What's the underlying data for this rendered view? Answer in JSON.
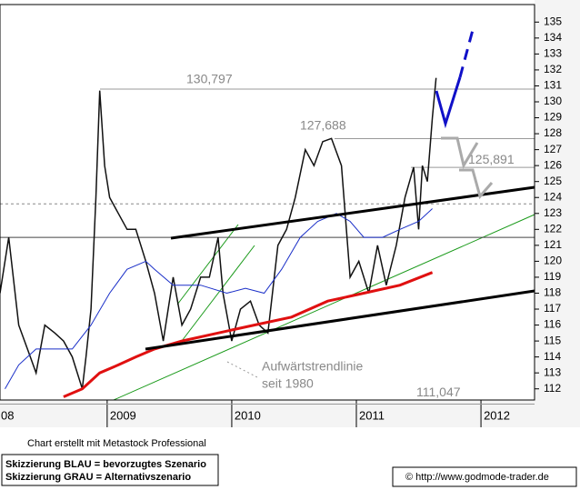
{
  "chart_data": {
    "type": "line",
    "xlim": [
      2008.14,
      2012.43
    ],
    "xticks": [
      {
        "value": 2008,
        "label": "08"
      },
      2009,
      2010,
      2011,
      2012
    ],
    "ylim": [
      111.3,
      136.1
    ],
    "yticks": [
      112,
      113,
      114,
      115,
      116,
      117,
      118,
      119,
      120,
      121,
      122,
      123,
      124,
      125,
      126,
      127,
      128,
      129,
      130,
      131,
      132,
      133,
      134,
      135
    ],
    "series": [
      {
        "color": "#111111",
        "x": [
          2008.14,
          2008.21,
          2008.29,
          2008.36,
          2008.43,
          2008.5,
          2008.58,
          2008.65,
          2008.72,
          2008.8,
          2008.83,
          2008.87,
          2008.91,
          2008.94,
          2008.98,
          2009.02,
          2009.09,
          2009.16,
          2009.23,
          2009.31,
          2009.38,
          2009.45,
          2009.49,
          2009.53,
          2009.6,
          2009.67,
          2009.75,
          2009.82,
          2009.89,
          2009.93,
          2010.0,
          2010.07,
          2010.15,
          2010.22,
          2010.29,
          2010.37,
          2010.44,
          2010.51,
          2010.59,
          2010.66,
          2010.73,
          2010.8,
          2010.88,
          2010.95,
          2011.02,
          2011.1,
          2011.17,
          2011.24,
          2011.32,
          2011.39,
          2011.46,
          2011.5,
          2011.53,
          2011.57,
          2011.61,
          2011.64
        ],
        "values": [
          118,
          121.5,
          116,
          114.5,
          113,
          116,
          115.5,
          115,
          114,
          112,
          114,
          117,
          124,
          130.7,
          126,
          124,
          123,
          122,
          122,
          120,
          118,
          115,
          117,
          119,
          116,
          117,
          119,
          119,
          121.5,
          118,
          115,
          117,
          117.5,
          116,
          115.5,
          121,
          122,
          124,
          127,
          126,
          127.5,
          127.7,
          126,
          119,
          120,
          118,
          121,
          118.5,
          121,
          124,
          125.9,
          122,
          126,
          125,
          129,
          131.5
        ]
      },
      {
        "color": "#1a2fc8",
        "x": [
          2008.18,
          2008.29,
          2008.43,
          2008.72,
          2008.87,
          2009.02,
          2009.16,
          2009.31,
          2009.38,
          2009.53,
          2009.75,
          2009.96,
          2010.11,
          2010.26,
          2010.4,
          2010.55,
          2010.69,
          2010.84,
          2010.95,
          2011.06,
          2011.21,
          2011.35,
          2011.5,
          2011.61
        ],
        "values": [
          112,
          113.5,
          114.5,
          114.5,
          116,
          118,
          119.5,
          120,
          119.5,
          118.5,
          118.5,
          118,
          118.3,
          118,
          119.5,
          121.5,
          122.5,
          123,
          122.5,
          121.5,
          121.5,
          122,
          122.5,
          123.3
        ]
      },
      {
        "color": "#e01010",
        "x": [
          2008.65,
          2008.8,
          2008.94,
          2009.09,
          2009.23,
          2009.38,
          2009.6,
          2009.89,
          2010.18,
          2010.48,
          2010.77,
          2011.06,
          2011.35,
          2011.61
        ],
        "values": [
          111.5,
          112,
          113,
          113.5,
          114,
          114.5,
          115,
          115.5,
          116,
          116.5,
          117.5,
          118,
          118.5,
          119.3
        ]
      }
    ],
    "levels": [
      {
        "value": 130.797,
        "label": "130,797"
      },
      {
        "value": 127.688,
        "label": "127,688"
      },
      {
        "value": 125.891,
        "label": "125,891"
      },
      {
        "value": 111.047,
        "label": "111,047"
      }
    ],
    "reference_lines": [
      123.6,
      121.5
    ],
    "annotation": [
      "Aufwärtstrendlinie",
      "seit 1980"
    ],
    "credit": "Chart erstellt mit Metastock Professional",
    "notes": [
      "Skizzierung BLAU = bevorzugtes Szenario",
      "Skizzierung GRAU = Alternativszenario"
    ],
    "source": "© http://www.godmode-trader.de"
  }
}
